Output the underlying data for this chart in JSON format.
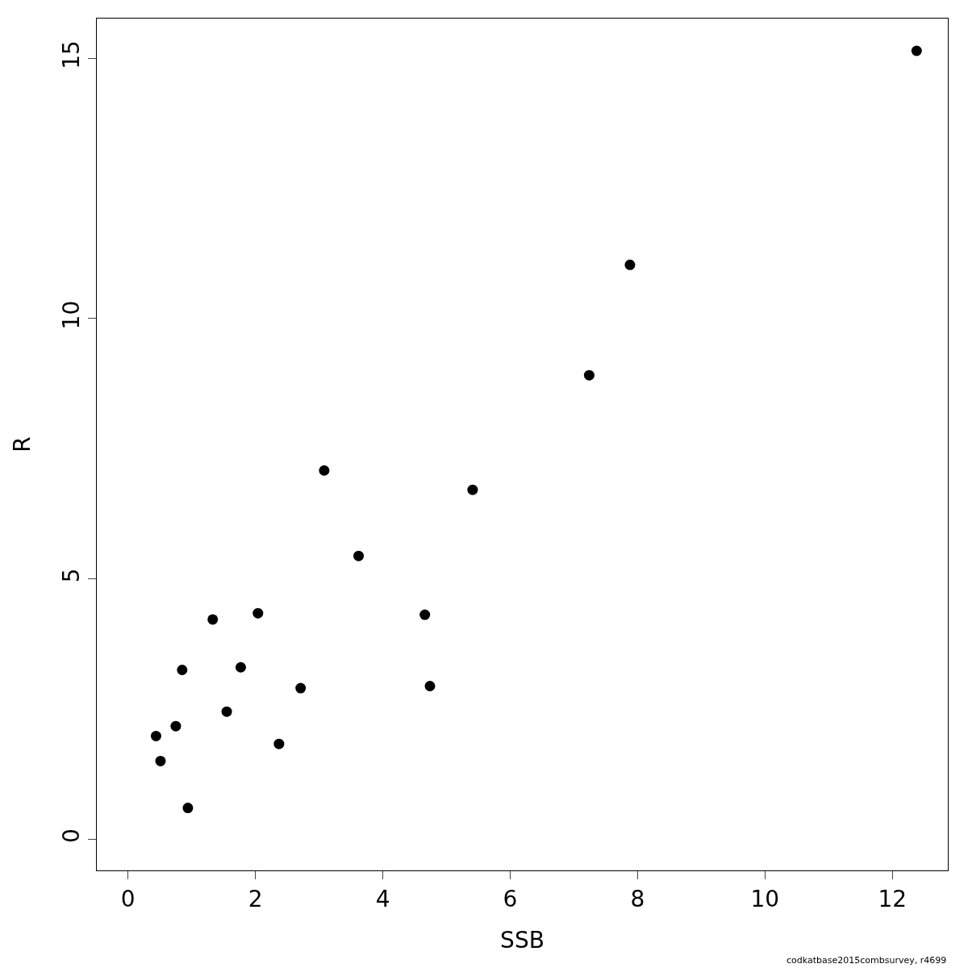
{
  "chart_data": {
    "type": "scatter",
    "xlabel": "SSB",
    "ylabel": "R",
    "x": [
      12.38,
      7.88,
      7.24,
      5.41,
      3.08,
      3.62,
      4.66,
      4.74,
      2.04,
      1.33,
      1.77,
      2.71,
      2.37,
      1.55,
      0.85,
      0.75,
      0.44,
      0.51,
      0.94
    ],
    "series": [
      {
        "color": "#000000",
        "values": [
          15.14,
          11.03,
          8.91,
          6.71,
          7.08,
          5.44,
          4.31,
          2.94,
          4.34,
          4.22,
          3.3,
          2.9,
          1.83,
          2.45,
          3.25,
          2.17,
          1.98,
          1.5,
          0.6
        ]
      }
    ],
    "xlim": [
      -0.49,
      12.87
    ],
    "ylim": [
      -0.6,
      15.76
    ],
    "xticks": [
      0,
      2,
      4,
      6,
      8,
      10,
      12
    ],
    "yticks": [
      0,
      5,
      10,
      15
    ],
    "marker": "circle",
    "annotations": [
      "codkatbase2015combsurvey, r4699"
    ]
  }
}
